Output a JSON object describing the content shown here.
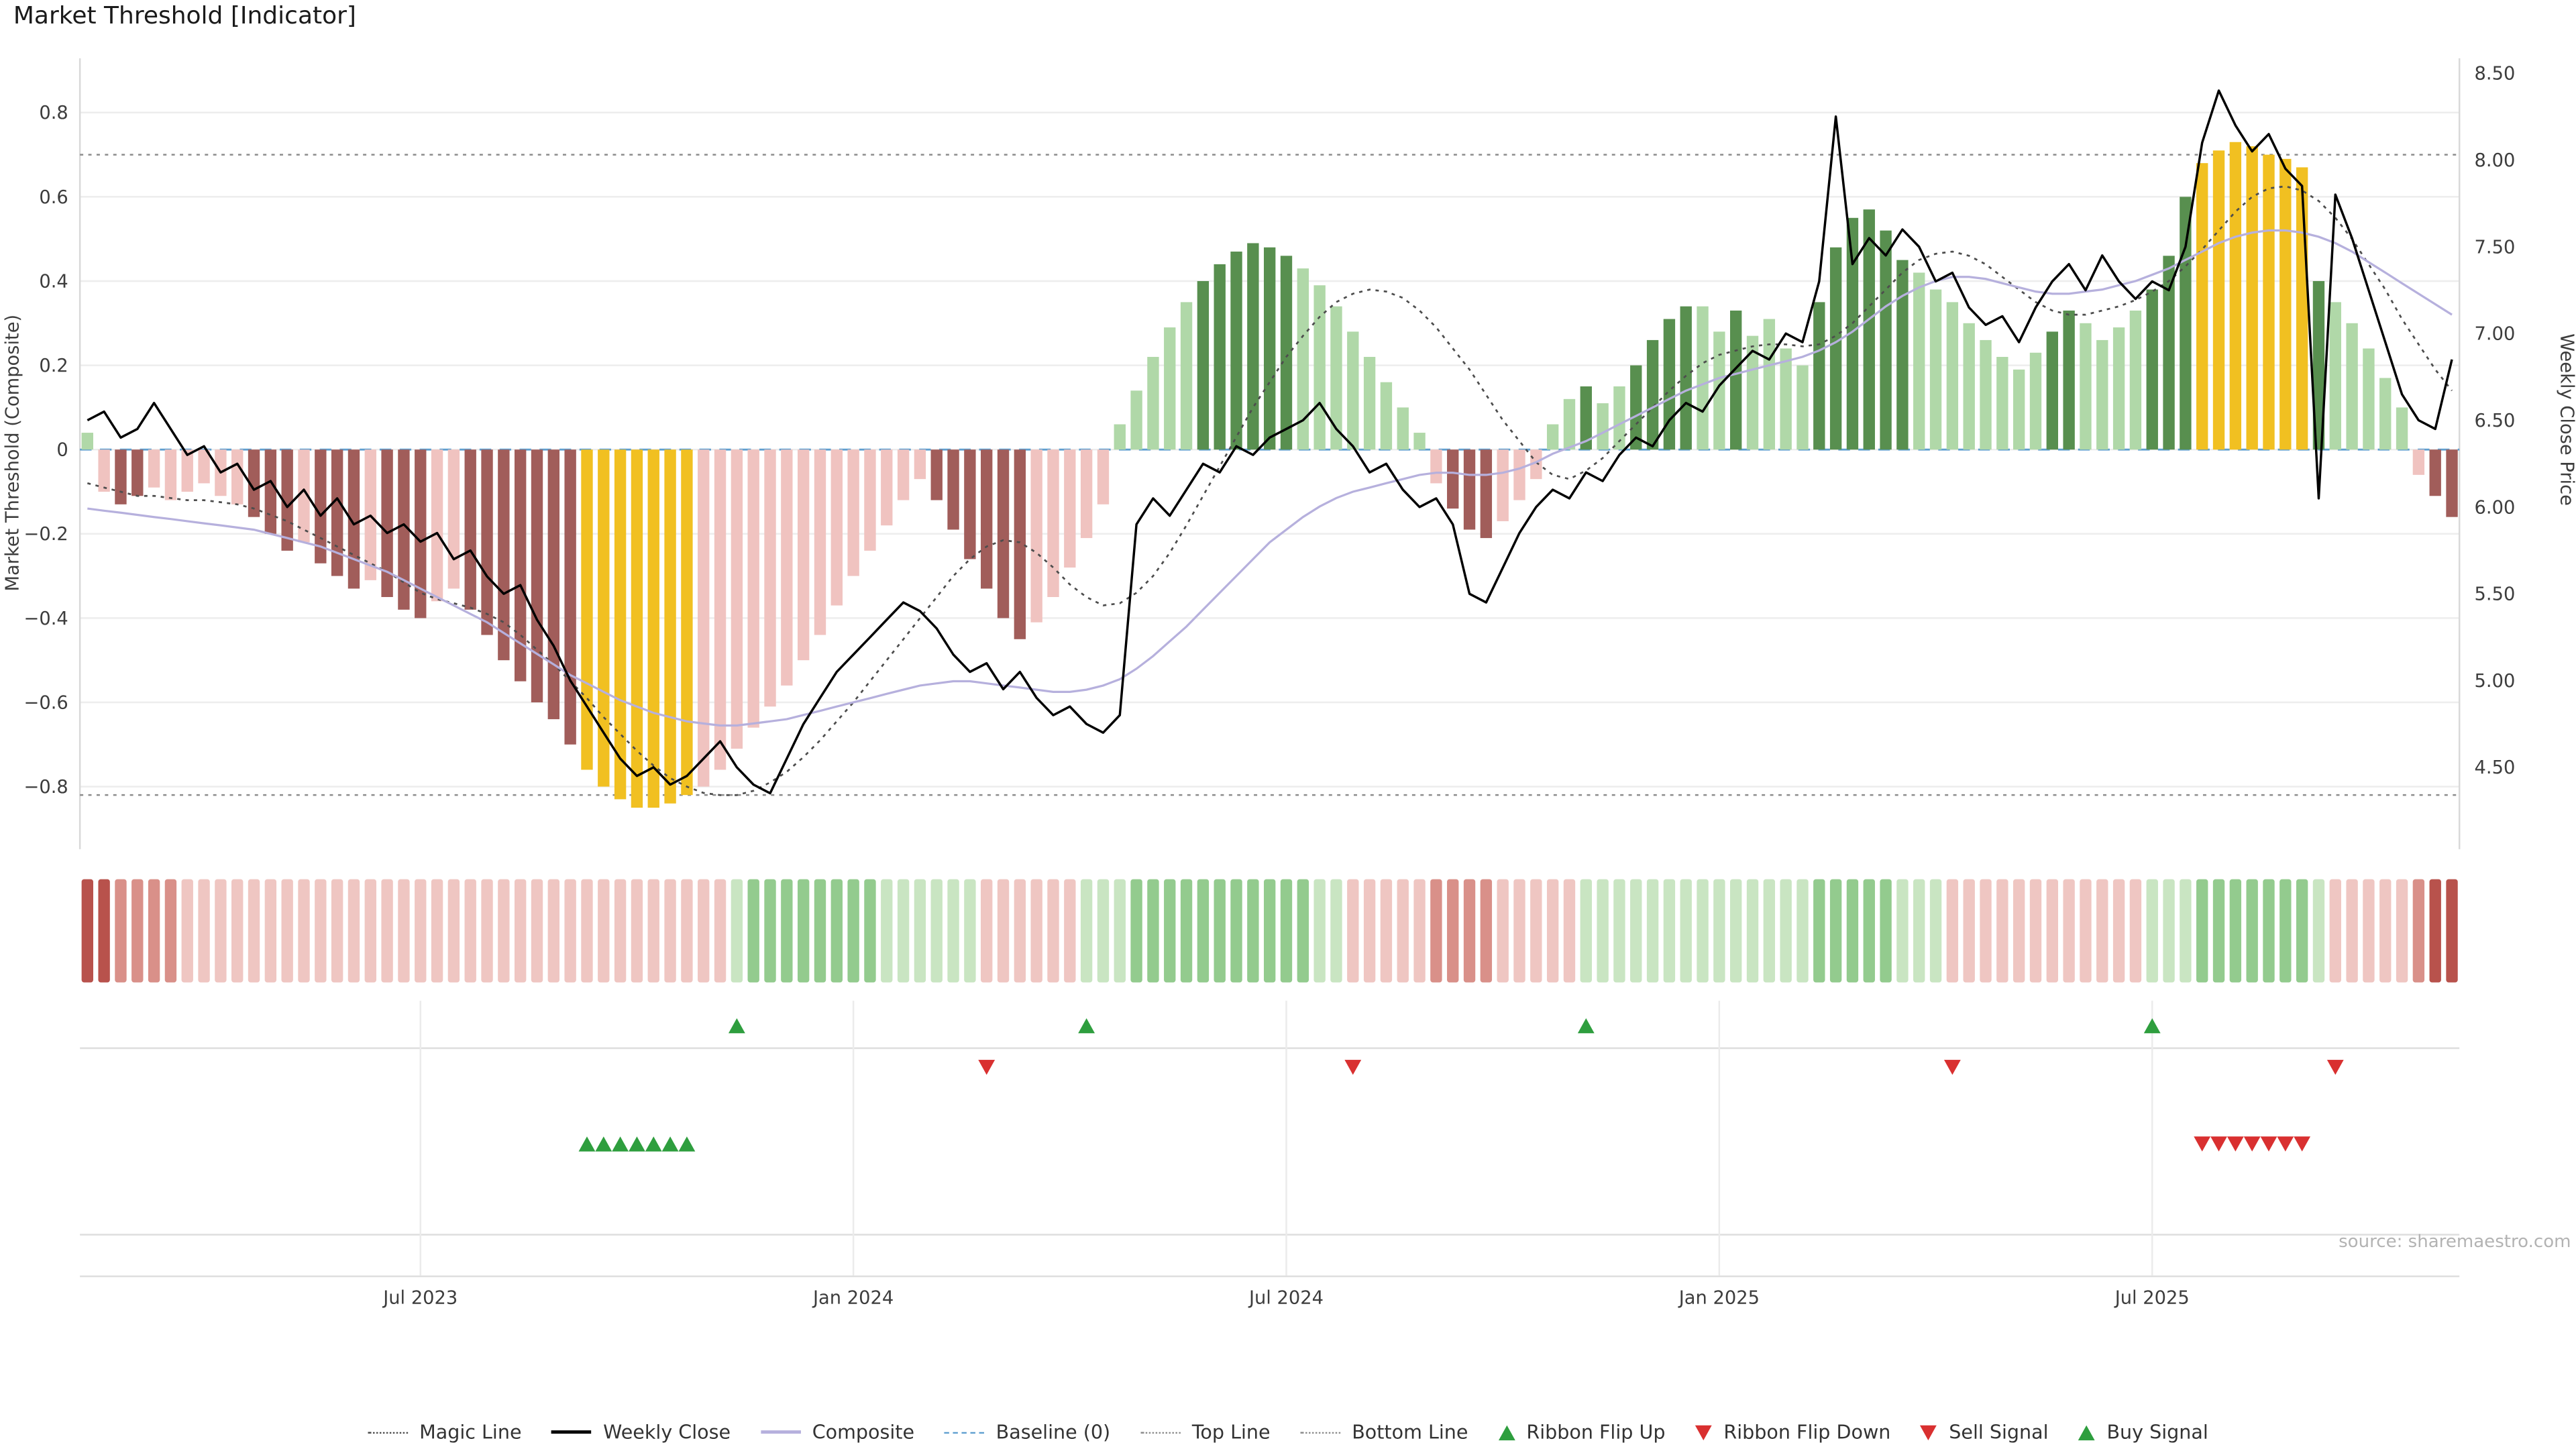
{
  "source_note": "source: sharemaestro.com",
  "legend": {
    "items": [
      {
        "label": "Magic Line",
        "marker": "dotted",
        "color": "#4d4d4d"
      },
      {
        "label": "Weekly Close",
        "marker": "solid",
        "color": "#000000"
      },
      {
        "label": "Composite",
        "marker": "solid",
        "color": "#b6b0dd"
      },
      {
        "label": "Baseline (0)",
        "marker": "dashed",
        "color": "#5f9fd0"
      },
      {
        "label": "Top Line",
        "marker": "dotted",
        "color": "#8c8c8c"
      },
      {
        "label": "Bottom Line",
        "marker": "dotted",
        "color": "#8c8c8c"
      },
      {
        "label": "Ribbon Flip Up",
        "marker": "triangle-up",
        "color": "#2e9e3e"
      },
      {
        "label": "Ribbon Flip Down",
        "marker": "triangle-down",
        "color": "#d93030"
      },
      {
        "label": "Sell Signal",
        "marker": "triangle-down",
        "color": "#d93030"
      },
      {
        "label": "Buy Signal",
        "marker": "triangle-up",
        "color": "#2e9e3e"
      }
    ]
  },
  "chart_data": {
    "type": "bar",
    "title": "Market Threshold [Indicator]",
    "weeks": 143,
    "left_axis": {
      "title": "Market Threshold (Composite)",
      "range": [
        -0.93,
        0.93
      ],
      "ticks": [
        {
          "v": 0.8,
          "label": "0.8"
        },
        {
          "v": 0.6,
          "label": "0.6"
        },
        {
          "v": 0.4,
          "label": "0.4"
        },
        {
          "v": 0.2,
          "label": "0.2"
        },
        {
          "v": 0,
          "label": "0"
        },
        {
          "v": -0.2,
          "label": "−0.2"
        },
        {
          "v": -0.4,
          "label": "−0.4"
        },
        {
          "v": -0.6,
          "label": "−0.6"
        },
        {
          "v": -0.8,
          "label": "−0.8"
        }
      ]
    },
    "right_axis": {
      "title": "Weekly Close Price",
      "range": [
        4.2,
        8.7
      ],
      "ticks": [
        {
          "v": 8.5,
          "label": "8.50"
        },
        {
          "v": 8,
          "label": "8.00"
        },
        {
          "v": 7.5,
          "label": "7.50"
        },
        {
          "v": 7,
          "label": "7.00"
        },
        {
          "v": 6.5,
          "label": "6.50"
        },
        {
          "v": 6,
          "label": "6.00"
        },
        {
          "v": 5.5,
          "label": "5.50"
        },
        {
          "v": 5,
          "label": "5.00"
        },
        {
          "v": 4.5,
          "label": "4.50"
        }
      ]
    },
    "x_axis": {
      "ticks": [
        {
          "week": 20,
          "label": "Jul 2023"
        },
        {
          "week": 46,
          "label": "Jan 2024"
        },
        {
          "week": 72,
          "label": "Jul 2024"
        },
        {
          "week": 98,
          "label": "Jan 2025"
        },
        {
          "week": 124,
          "label": "Jul 2025"
        }
      ]
    },
    "reference_lines": {
      "baseline": 0,
      "top_line": 0.7,
      "bottom_line": -0.82
    },
    "palette": {
      "bar": {
        "dr": "#a15d5a",
        "lr": "#f0c3c0",
        "au": "#f1c021",
        "lg": "#b0d8a8",
        "dg": "#588f4f"
      },
      "ribbon": {
        "r3": "#b8524c",
        "r2": "#d99089",
        "r1": "#efc6c2",
        "g1": "#c9e5c2",
        "g2": "#93cb8e"
      },
      "lines": {
        "weekly_close": "#000000",
        "composite": "#b6b0dd",
        "magic": "#4d4d4d",
        "baseline": "#5f9fd0",
        "top_bottom": "#8c8c8c"
      },
      "signals": {
        "up": "#2e9e3e",
        "down": "#d93030"
      }
    },
    "bars": {
      "name": "Market Threshold (Composite) histogram",
      "values": [
        0.04,
        -0.1,
        -0.13,
        -0.11,
        -0.09,
        -0.12,
        -0.1,
        -0.08,
        -0.11,
        -0.13,
        -0.16,
        -0.2,
        -0.24,
        -0.22,
        -0.27,
        -0.3,
        -0.33,
        -0.31,
        -0.35,
        -0.38,
        -0.4,
        -0.36,
        -0.33,
        -0.38,
        -0.44,
        -0.5,
        -0.55,
        -0.6,
        -0.64,
        -0.7,
        -0.76,
        -0.8,
        -0.83,
        -0.85,
        -0.85,
        -0.84,
        -0.82,
        -0.8,
        -0.76,
        -0.71,
        -0.66,
        -0.61,
        -0.56,
        -0.5,
        -0.44,
        -0.37,
        -0.3,
        -0.24,
        -0.18,
        -0.12,
        -0.07,
        -0.12,
        -0.19,
        -0.26,
        -0.33,
        -0.4,
        -0.45,
        -0.41,
        -0.35,
        -0.28,
        -0.21,
        -0.13,
        0.06,
        0.14,
        0.22,
        0.29,
        0.35,
        0.4,
        0.44,
        0.47,
        0.49,
        0.48,
        0.46,
        0.43,
        0.39,
        0.34,
        0.28,
        0.22,
        0.16,
        0.1,
        0.04,
        -0.08,
        -0.14,
        -0.19,
        -0.21,
        -0.17,
        -0.12,
        -0.07,
        0.06,
        0.12,
        0.15,
        0.11,
        0.15,
        0.2,
        0.26,
        0.31,
        0.34,
        0.34,
        0.28,
        0.33,
        0.27,
        0.31,
        0.24,
        0.2,
        0.35,
        0.48,
        0.55,
        0.57,
        0.52,
        0.45,
        0.42,
        0.38,
        0.35,
        0.3,
        0.26,
        0.22,
        0.19,
        0.23,
        0.28,
        0.33,
        0.3,
        0.26,
        0.29,
        0.33,
        0.38,
        0.46,
        0.6,
        0.68,
        0.71,
        0.73,
        0.72,
        0.7,
        0.69,
        0.67,
        0.4,
        0.35,
        0.3,
        0.24,
        0.17,
        0.1,
        -0.06,
        -0.11,
        -0.16
      ],
      "colors": [
        "lg",
        "lr",
        "dr",
        "dr",
        "lr",
        "lr",
        "lr",
        "lr",
        "lr",
        "lr",
        "dr",
        "dr",
        "dr",
        "lr",
        "dr",
        "dr",
        "dr",
        "lr",
        "dr",
        "dr",
        "dr",
        "lr",
        "lr",
        "dr",
        "dr",
        "dr",
        "dr",
        "dr",
        "dr",
        "dr",
        "au",
        "au",
        "au",
        "au",
        "au",
        "au",
        "au",
        "lr",
        "lr",
        "lr",
        "lr",
        "lr",
        "lr",
        "lr",
        "lr",
        "lr",
        "lr",
        "lr",
        "lr",
        "lr",
        "lr",
        "dr",
        "dr",
        "dr",
        "dr",
        "dr",
        "dr",
        "lr",
        "lr",
        "lr",
        "lr",
        "lr",
        "lg",
        "lg",
        "lg",
        "lg",
        "lg",
        "dg",
        "dg",
        "dg",
        "dg",
        "dg",
        "dg",
        "lg",
        "lg",
        "lg",
        "lg",
        "lg",
        "lg",
        "lg",
        "lg",
        "lr",
        "dr",
        "dr",
        "dr",
        "lr",
        "lr",
        "lr",
        "lg",
        "lg",
        "dg",
        "lg",
        "lg",
        "dg",
        "dg",
        "dg",
        "dg",
        "lg",
        "lg",
        "dg",
        "lg",
        "lg",
        "lg",
        "lg",
        "dg",
        "dg",
        "dg",
        "dg",
        "dg",
        "dg",
        "lg",
        "lg",
        "lg",
        "lg",
        "lg",
        "lg",
        "lg",
        "lg",
        "dg",
        "dg",
        "lg",
        "lg",
        "lg",
        "lg",
        "dg",
        "dg",
        "dg",
        "au",
        "au",
        "au",
        "au",
        "au",
        "au",
        "au",
        "dg",
        "lg",
        "lg",
        "lg",
        "lg",
        "lg",
        "lr",
        "dr",
        "dr"
      ]
    },
    "series": [
      {
        "name": "Weekly Close",
        "axis": "right",
        "values": [
          6.5,
          6.55,
          6.4,
          6.45,
          6.6,
          6.45,
          6.3,
          6.35,
          6.2,
          6.25,
          6.1,
          6.15,
          6.0,
          6.1,
          5.95,
          6.05,
          5.9,
          5.95,
          5.85,
          5.9,
          5.8,
          5.85,
          5.7,
          5.75,
          5.6,
          5.5,
          5.55,
          5.35,
          5.2,
          5.0,
          4.85,
          4.7,
          4.55,
          4.45,
          4.5,
          4.4,
          4.45,
          4.55,
          4.65,
          4.5,
          4.4,
          4.35,
          4.55,
          4.75,
          4.9,
          5.05,
          5.15,
          5.25,
          5.35,
          5.45,
          5.4,
          5.3,
          5.15,
          5.05,
          5.1,
          4.95,
          5.05,
          4.9,
          4.8,
          4.85,
          4.75,
          4.7,
          4.8,
          5.9,
          6.05,
          5.95,
          6.1,
          6.25,
          6.2,
          6.35,
          6.3,
          6.4,
          6.45,
          6.5,
          6.6,
          6.45,
          6.35,
          6.2,
          6.25,
          6.1,
          6.0,
          6.05,
          5.9,
          5.5,
          5.45,
          5.65,
          5.85,
          6.0,
          6.1,
          6.05,
          6.2,
          6.15,
          6.3,
          6.4,
          6.35,
          6.5,
          6.6,
          6.55,
          6.7,
          6.8,
          6.9,
          6.85,
          7.0,
          6.95,
          7.3,
          8.25,
          7.4,
          7.55,
          7.45,
          7.6,
          7.5,
          7.3,
          7.35,
          7.15,
          7.05,
          7.1,
          6.95,
          7.15,
          7.3,
          7.4,
          7.25,
          7.45,
          7.3,
          7.2,
          7.3,
          7.25,
          7.5,
          8.1,
          8.4,
          8.2,
          8.05,
          8.15,
          7.95,
          7.85,
          6.05,
          7.8,
          7.55,
          7.25,
          6.95,
          6.65,
          6.5,
          6.45,
          6.85
        ]
      },
      {
        "name": "Composite",
        "axis": "left",
        "values": [
          -0.14,
          -0.145,
          -0.15,
          -0.155,
          -0.16,
          -0.165,
          -0.17,
          -0.175,
          -0.18,
          -0.185,
          -0.19,
          -0.2,
          -0.21,
          -0.22,
          -0.23,
          -0.245,
          -0.26,
          -0.275,
          -0.29,
          -0.31,
          -0.33,
          -0.35,
          -0.37,
          -0.39,
          -0.41,
          -0.435,
          -0.46,
          -0.485,
          -0.51,
          -0.535,
          -0.555,
          -0.575,
          -0.595,
          -0.61,
          -0.625,
          -0.635,
          -0.645,
          -0.65,
          -0.655,
          -0.655,
          -0.65,
          -0.645,
          -0.64,
          -0.63,
          -0.62,
          -0.61,
          -0.6,
          -0.59,
          -0.58,
          -0.57,
          -0.56,
          -0.555,
          -0.55,
          -0.55,
          -0.555,
          -0.56,
          -0.565,
          -0.57,
          -0.575,
          -0.575,
          -0.57,
          -0.56,
          -0.545,
          -0.52,
          -0.49,
          -0.455,
          -0.42,
          -0.38,
          -0.34,
          -0.3,
          -0.26,
          -0.22,
          -0.19,
          -0.16,
          -0.135,
          -0.115,
          -0.1,
          -0.09,
          -0.08,
          -0.07,
          -0.06,
          -0.055,
          -0.055,
          -0.06,
          -0.06,
          -0.055,
          -0.045,
          -0.03,
          -0.01,
          0.005,
          0.02,
          0.04,
          0.06,
          0.08,
          0.1,
          0.12,
          0.14,
          0.155,
          0.17,
          0.18,
          0.19,
          0.2,
          0.21,
          0.22,
          0.235,
          0.255,
          0.28,
          0.31,
          0.34,
          0.365,
          0.385,
          0.4,
          0.41,
          0.41,
          0.405,
          0.395,
          0.385,
          0.375,
          0.37,
          0.37,
          0.375,
          0.38,
          0.39,
          0.4,
          0.415,
          0.43,
          0.45,
          0.47,
          0.49,
          0.505,
          0.515,
          0.52,
          0.52,
          0.515,
          0.505,
          0.49,
          0.47,
          0.445,
          0.42,
          0.395,
          0.37,
          0.345,
          0.32
        ]
      },
      {
        "name": "Magic Line",
        "axis": "left",
        "style": "dotted",
        "values": [
          -0.08,
          -0.09,
          -0.1,
          -0.11,
          -0.11,
          -0.115,
          -0.12,
          -0.12,
          -0.125,
          -0.13,
          -0.14,
          -0.155,
          -0.17,
          -0.19,
          -0.21,
          -0.23,
          -0.25,
          -0.27,
          -0.29,
          -0.315,
          -0.34,
          -0.355,
          -0.365,
          -0.375,
          -0.39,
          -0.41,
          -0.44,
          -0.475,
          -0.51,
          -0.55,
          -0.59,
          -0.635,
          -0.675,
          -0.715,
          -0.75,
          -0.78,
          -0.8,
          -0.815,
          -0.82,
          -0.82,
          -0.81,
          -0.79,
          -0.765,
          -0.73,
          -0.69,
          -0.645,
          -0.6,
          -0.55,
          -0.5,
          -0.45,
          -0.4,
          -0.35,
          -0.3,
          -0.26,
          -0.23,
          -0.215,
          -0.22,
          -0.245,
          -0.28,
          -0.32,
          -0.35,
          -0.37,
          -0.365,
          -0.34,
          -0.3,
          -0.245,
          -0.18,
          -0.11,
          -0.04,
          0.03,
          0.1,
          0.16,
          0.22,
          0.27,
          0.315,
          0.35,
          0.37,
          0.38,
          0.375,
          0.36,
          0.33,
          0.29,
          0.24,
          0.19,
          0.13,
          0.07,
          0.02,
          -0.03,
          -0.06,
          -0.07,
          -0.05,
          -0.02,
          0.02,
          0.06,
          0.1,
          0.14,
          0.175,
          0.205,
          0.225,
          0.235,
          0.245,
          0.25,
          0.25,
          0.245,
          0.25,
          0.27,
          0.3,
          0.34,
          0.38,
          0.42,
          0.45,
          0.465,
          0.47,
          0.46,
          0.44,
          0.41,
          0.38,
          0.35,
          0.33,
          0.32,
          0.32,
          0.33,
          0.34,
          0.355,
          0.375,
          0.4,
          0.435,
          0.475,
          0.52,
          0.565,
          0.6,
          0.62,
          0.625,
          0.615,
          0.59,
          0.55,
          0.5,
          0.44,
          0.38,
          0.31,
          0.25,
          0.19,
          0.14
        ]
      }
    ],
    "ribbon": [
      "r3",
      "r3",
      "r2",
      "r2",
      "r2",
      "r2",
      "r1",
      "r1",
      "r1",
      "r1",
      "r1",
      "r1",
      "r1",
      "r1",
      "r1",
      "r1",
      "r1",
      "r1",
      "r1",
      "r1",
      "r1",
      "r1",
      "r1",
      "r1",
      "r1",
      "r1",
      "r1",
      "r1",
      "r1",
      "r1",
      "r1",
      "r1",
      "r1",
      "r1",
      "r1",
      "r1",
      "r1",
      "r1",
      "r1",
      "g1",
      "g2",
      "g2",
      "g2",
      "g2",
      "g2",
      "g2",
      "g2",
      "g2",
      "g1",
      "g1",
      "g1",
      "g1",
      "g1",
      "g1",
      "r1",
      "r1",
      "r1",
      "r1",
      "r1",
      "r1",
      "g1",
      "g1",
      "g1",
      "g2",
      "g2",
      "g2",
      "g2",
      "g2",
      "g2",
      "g2",
      "g2",
      "g2",
      "g2",
      "g2",
      "g1",
      "g1",
      "r1",
      "r1",
      "r1",
      "r1",
      "r1",
      "r2",
      "r2",
      "r2",
      "r2",
      "r1",
      "r1",
      "r1",
      "r1",
      "r1",
      "g1",
      "g1",
      "g1",
      "g1",
      "g1",
      "g1",
      "g1",
      "g1",
      "g1",
      "g1",
      "g1",
      "g1",
      "g1",
      "g1",
      "g2",
      "g2",
      "g2",
      "g2",
      "g2",
      "g1",
      "g1",
      "g1",
      "r1",
      "r1",
      "r1",
      "r1",
      "r1",
      "r1",
      "r1",
      "r1",
      "r1",
      "r1",
      "r1",
      "r1",
      "g1",
      "g1",
      "g1",
      "g2",
      "g2",
      "g2",
      "g2",
      "g2",
      "g2",
      "g2",
      "g1",
      "r1",
      "r1",
      "r1",
      "r1",
      "r1",
      "r2",
      "r3",
      "r3"
    ],
    "signals": {
      "ribbon_flip_up_weeks": [
        39,
        60,
        90,
        124
      ],
      "ribbon_flip_down_weeks": [
        54,
        76,
        112,
        135
      ],
      "buy_signal_weeks": [
        30,
        31,
        32,
        33,
        34,
        35,
        36
      ],
      "sell_signal_weeks": [
        127,
        128,
        129,
        130,
        131,
        132,
        133
      ]
    }
  }
}
